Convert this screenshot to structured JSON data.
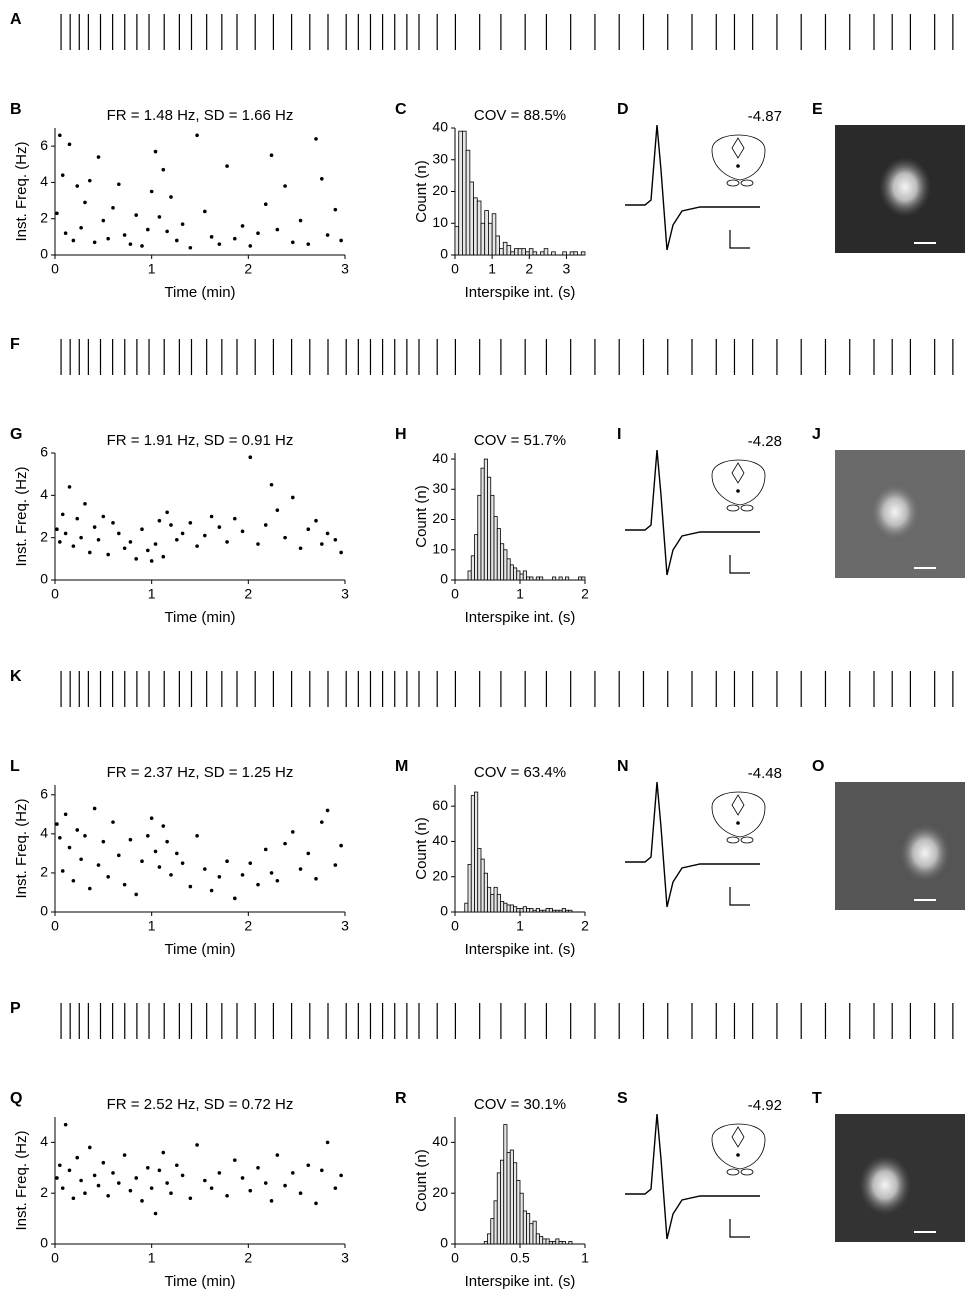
{
  "chart_data": [
    {
      "type": "spiketrain",
      "panels": [
        "A",
        "B",
        "C",
        "D",
        "E"
      ],
      "title": "FR = 1.48 Hz, SD = 1.66 Hz",
      "xlabel": "Time (min)",
      "ylabel": "Inst. Freq. (Hz)",
      "xlim": [
        0,
        3
      ],
      "xticks": [
        0,
        1,
        2,
        3
      ],
      "ylim": [
        0,
        7
      ],
      "yticks": [
        0,
        2,
        4,
        6
      ],
      "x": [
        0.02,
        0.05,
        0.08,
        0.11,
        0.15,
        0.19,
        0.23,
        0.27,
        0.31,
        0.36,
        0.41,
        0.45,
        0.5,
        0.55,
        0.6,
        0.66,
        0.72,
        0.78,
        0.84,
        0.9,
        0.96,
        1.0,
        1.04,
        1.08,
        1.12,
        1.16,
        1.2,
        1.26,
        1.32,
        1.4,
        1.47,
        1.55,
        1.62,
        1.7,
        1.78,
        1.86,
        1.94,
        2.02,
        2.1,
        2.18,
        2.24,
        2.3,
        2.38,
        2.46,
        2.54,
        2.62,
        2.7,
        2.76,
        2.82,
        2.9,
        2.96
      ],
      "values": [
        2.3,
        6.6,
        4.4,
        1.2,
        6.1,
        0.8,
        3.8,
        1.5,
        2.9,
        4.1,
        0.7,
        5.4,
        1.9,
        0.9,
        2.6,
        3.9,
        1.1,
        0.6,
        2.2,
        0.5,
        1.4,
        3.5,
        5.7,
        2.1,
        4.7,
        1.3,
        3.2,
        0.8,
        1.7,
        0.4,
        6.6,
        2.4,
        1.0,
        0.6,
        4.9,
        0.9,
        1.6,
        0.5,
        1.2,
        2.8,
        5.5,
        1.4,
        3.8,
        0.7,
        1.9,
        0.6,
        6.4,
        4.2,
        1.1,
        2.5,
        0.8
      ],
      "hist": {
        "title": "COV = 88.5%",
        "xlabel": "Interspike int. (s)",
        "ylabel": "Count (n)",
        "xlim": [
          0,
          3.5
        ],
        "xticks": [
          0,
          1,
          2,
          3
        ],
        "ylim": [
          0,
          40
        ],
        "yticks": [
          0,
          10,
          20,
          30,
          40
        ],
        "bins": [
          0,
          0.1,
          0.2,
          0.3,
          0.4,
          0.5,
          0.6,
          0.7,
          0.8,
          0.9,
          1,
          1.1,
          1.2,
          1.3,
          1.4,
          1.5,
          1.6,
          1.7,
          1.8,
          1.9,
          2,
          2.1,
          2.2,
          2.3,
          2.4,
          2.5,
          2.6,
          2.7,
          2.8,
          2.9,
          3,
          3.1,
          3.2,
          3.3,
          3.4,
          3.5
        ],
        "counts": [
          9,
          39,
          39,
          33,
          23,
          18,
          17,
          10,
          14,
          10,
          13,
          6,
          2,
          4,
          3,
          1,
          2,
          2,
          2,
          1,
          2,
          1,
          0,
          1,
          2,
          0,
          1,
          0,
          0,
          1,
          0,
          1,
          1,
          0,
          1
        ]
      },
      "coordinate": -4.87
    },
    {
      "type": "spiketrain",
      "panels": [
        "F",
        "G",
        "H",
        "I",
        "J"
      ],
      "title": "FR = 1.91 Hz, SD = 0.91 Hz",
      "xlabel": "Time (min)",
      "ylabel": "Inst. Freq. (Hz)",
      "xlim": [
        0,
        3
      ],
      "xticks": [
        0,
        1,
        2,
        3
      ],
      "ylim": [
        0,
        6
      ],
      "yticks": [
        0,
        2,
        4,
        6
      ],
      "x": [
        0.02,
        0.05,
        0.08,
        0.11,
        0.15,
        0.19,
        0.23,
        0.27,
        0.31,
        0.36,
        0.41,
        0.45,
        0.5,
        0.55,
        0.6,
        0.66,
        0.72,
        0.78,
        0.84,
        0.9,
        0.96,
        1.0,
        1.04,
        1.08,
        1.12,
        1.16,
        1.2,
        1.26,
        1.32,
        1.4,
        1.47,
        1.55,
        1.62,
        1.7,
        1.78,
        1.86,
        1.94,
        2.02,
        2.1,
        2.18,
        2.24,
        2.3,
        2.38,
        2.46,
        2.54,
        2.62,
        2.7,
        2.76,
        2.82,
        2.9,
        2.96
      ],
      "values": [
        2.4,
        1.8,
        3.1,
        2.2,
        4.4,
        1.6,
        2.9,
        2.0,
        3.6,
        1.3,
        2.5,
        1.9,
        3.0,
        1.2,
        2.7,
        2.2,
        1.5,
        1.8,
        1.0,
        2.4,
        1.4,
        0.9,
        1.7,
        2.8,
        1.1,
        3.2,
        2.6,
        1.9,
        2.2,
        2.7,
        1.6,
        2.1,
        3.0,
        2.5,
        1.8,
        2.9,
        2.3,
        5.8,
        1.7,
        2.6,
        4.5,
        3.3,
        2.0,
        3.9,
        1.5,
        2.4,
        2.8,
        1.7,
        2.2,
        1.9,
        1.3
      ],
      "hist": {
        "title": "COV = 51.7%",
        "xlabel": "Interspike int. (s)",
        "ylabel": "Count (n)",
        "xlim": [
          0,
          2
        ],
        "xticks": [
          0,
          1,
          2
        ],
        "ylim": [
          0,
          42
        ],
        "yticks": [
          0,
          10,
          20,
          30,
          40
        ],
        "bins": [
          0,
          0.05,
          0.1,
          0.15,
          0.2,
          0.25,
          0.3,
          0.35,
          0.4,
          0.45,
          0.5,
          0.55,
          0.6,
          0.65,
          0.7,
          0.75,
          0.8,
          0.85,
          0.9,
          0.95,
          1,
          1.05,
          1.1,
          1.15,
          1.2,
          1.25,
          1.3,
          1.35,
          1.4,
          1.45,
          1.5,
          1.55,
          1.6,
          1.65,
          1.7,
          1.75,
          1.8,
          1.85,
          1.9,
          1.95,
          2
        ],
        "counts": [
          0,
          0,
          0,
          0,
          3,
          8,
          15,
          28,
          37,
          40,
          34,
          28,
          21,
          17,
          12,
          10,
          7,
          5,
          4,
          3,
          2,
          3,
          1,
          1,
          0,
          1,
          1,
          0,
          0,
          0,
          1,
          0,
          1,
          0,
          1,
          0,
          0,
          0,
          1,
          1
        ]
      },
      "coordinate": -4.28
    },
    {
      "type": "spiketrain",
      "panels": [
        "K",
        "L",
        "M",
        "N",
        "O"
      ],
      "title": "FR = 2.37 Hz, SD = 1.25 Hz",
      "xlabel": "Time (min)",
      "ylabel": "Inst. Freq. (Hz)",
      "xlim": [
        0,
        3
      ],
      "xticks": [
        0,
        1,
        2,
        3
      ],
      "ylim": [
        0,
        6.5
      ],
      "yticks": [
        0,
        2,
        4,
        6
      ],
      "x": [
        0.02,
        0.05,
        0.08,
        0.11,
        0.15,
        0.19,
        0.23,
        0.27,
        0.31,
        0.36,
        0.41,
        0.45,
        0.5,
        0.55,
        0.6,
        0.66,
        0.72,
        0.78,
        0.84,
        0.9,
        0.96,
        1.0,
        1.04,
        1.08,
        1.12,
        1.16,
        1.2,
        1.26,
        1.32,
        1.4,
        1.47,
        1.55,
        1.62,
        1.7,
        1.78,
        1.86,
        1.94,
        2.02,
        2.1,
        2.18,
        2.24,
        2.3,
        2.38,
        2.46,
        2.54,
        2.62,
        2.7,
        2.76,
        2.82,
        2.9,
        2.96
      ],
      "values": [
        4.5,
        3.8,
        2.1,
        5.0,
        3.3,
        1.6,
        4.2,
        2.7,
        3.9,
        1.2,
        5.3,
        2.4,
        3.6,
        1.8,
        4.6,
        2.9,
        1.4,
        3.7,
        0.9,
        2.6,
        3.9,
        4.8,
        3.1,
        2.3,
        4.4,
        3.6,
        1.9,
        3.0,
        2.5,
        1.3,
        3.9,
        2.2,
        1.1,
        1.8,
        2.6,
        0.7,
        1.9,
        2.5,
        1.4,
        3.2,
        2.0,
        1.6,
        3.5,
        4.1,
        2.2,
        3.0,
        1.7,
        4.6,
        5.2,
        2.4,
        3.4
      ],
      "hist": {
        "title": "COV = 63.4%",
        "xlabel": "Interspike int. (s)",
        "ylabel": "Count (n)",
        "xlim": [
          0,
          2
        ],
        "xticks": [
          0,
          1,
          2
        ],
        "ylim": [
          0,
          72
        ],
        "yticks": [
          0,
          20,
          40,
          60
        ],
        "bins": [
          0,
          0.05,
          0.1,
          0.15,
          0.2,
          0.25,
          0.3,
          0.35,
          0.4,
          0.45,
          0.5,
          0.55,
          0.6,
          0.65,
          0.7,
          0.75,
          0.8,
          0.85,
          0.9,
          0.95,
          1,
          1.05,
          1.1,
          1.15,
          1.2,
          1.25,
          1.3,
          1.35,
          1.4,
          1.45,
          1.5,
          1.55,
          1.6,
          1.65,
          1.7,
          1.75,
          1.8,
          1.85,
          1.9,
          1.95,
          2
        ],
        "counts": [
          0,
          0,
          0,
          5,
          27,
          66,
          68,
          36,
          30,
          22,
          14,
          10,
          14,
          10,
          6,
          5,
          4,
          4,
          3,
          2,
          2,
          3,
          2,
          2,
          1,
          2,
          1,
          1,
          2,
          2,
          1,
          1,
          1,
          2,
          1,
          1,
          0,
          0,
          0,
          0
        ]
      },
      "coordinate": -4.48
    },
    {
      "type": "spiketrain",
      "panels": [
        "P",
        "Q",
        "R",
        "S",
        "T"
      ],
      "title": "FR = 2.52 Hz, SD = 0.72 Hz",
      "xlabel": "Time (min)",
      "ylabel": "Inst. Freq. (Hz)",
      "xlim": [
        0,
        3
      ],
      "xticks": [
        0,
        1,
        2,
        3
      ],
      "ylim": [
        0,
        5
      ],
      "yticks": [
        0,
        2,
        4
      ],
      "x": [
        0.02,
        0.05,
        0.08,
        0.11,
        0.15,
        0.19,
        0.23,
        0.27,
        0.31,
        0.36,
        0.41,
        0.45,
        0.5,
        0.55,
        0.6,
        0.66,
        0.72,
        0.78,
        0.84,
        0.9,
        0.96,
        1.0,
        1.04,
        1.08,
        1.12,
        1.16,
        1.2,
        1.26,
        1.32,
        1.4,
        1.47,
        1.55,
        1.62,
        1.7,
        1.78,
        1.86,
        1.94,
        2.02,
        2.1,
        2.18,
        2.24,
        2.3,
        2.38,
        2.46,
        2.54,
        2.62,
        2.7,
        2.76,
        2.82,
        2.9,
        2.96
      ],
      "values": [
        2.6,
        3.1,
        2.2,
        4.7,
        2.9,
        1.8,
        3.4,
        2.5,
        2.0,
        3.8,
        2.7,
        2.3,
        3.2,
        1.9,
        2.8,
        2.4,
        3.5,
        2.1,
        2.6,
        1.7,
        3.0,
        2.2,
        1.2,
        2.9,
        3.6,
        2.4,
        2.0,
        3.1,
        2.7,
        1.8,
        3.9,
        2.5,
        2.2,
        2.8,
        1.9,
        3.3,
        2.6,
        2.1,
        3.0,
        2.4,
        1.7,
        3.5,
        2.3,
        2.8,
        2.0,
        3.1,
        1.6,
        2.9,
        4.0,
        2.2,
        2.7
      ],
      "hist": {
        "title": "COV = 30.1%",
        "xlabel": "Interspike int. (s)",
        "ylabel": "Count (n)",
        "xlim": [
          0,
          1
        ],
        "xticks": [
          0,
          0.5,
          1
        ],
        "ylim": [
          0,
          50
        ],
        "yticks": [
          0,
          20,
          40
        ],
        "bins": [
          0,
          0.025,
          0.05,
          0.075,
          0.1,
          0.125,
          0.15,
          0.175,
          0.2,
          0.225,
          0.25,
          0.275,
          0.3,
          0.325,
          0.35,
          0.375,
          0.4,
          0.425,
          0.45,
          0.475,
          0.5,
          0.525,
          0.55,
          0.575,
          0.6,
          0.625,
          0.65,
          0.675,
          0.7,
          0.725,
          0.75,
          0.775,
          0.8,
          0.825,
          0.85,
          0.875,
          0.9,
          0.925,
          0.95,
          0.975,
          1
        ],
        "counts": [
          0,
          0,
          0,
          0,
          0,
          0,
          0,
          0,
          0,
          1,
          4,
          10,
          17,
          28,
          33,
          47,
          36,
          37,
          32,
          25,
          20,
          13,
          12,
          8,
          9,
          4,
          3,
          2,
          2,
          1,
          1,
          2,
          1,
          1,
          0,
          1,
          0,
          0,
          0,
          0
        ]
      },
      "coordinate": -4.92
    }
  ]
}
